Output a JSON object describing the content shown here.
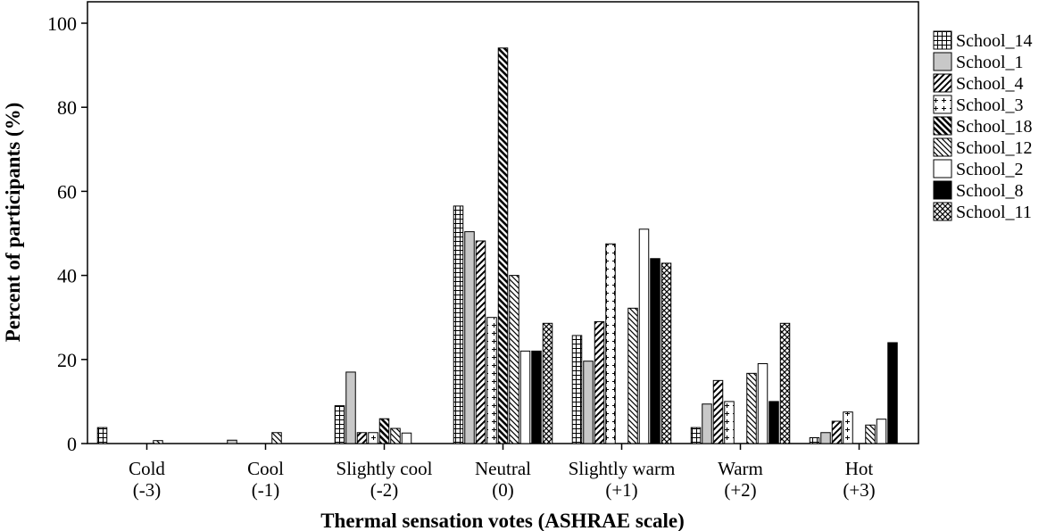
{
  "chart_data": {
    "type": "bar",
    "title": "",
    "xlabel": "Thermal sensation votes (ASHRAE scale)",
    "ylabel": "Percent of participants (%)",
    "ylim": [
      0,
      100
    ],
    "yticks": [
      0,
      20,
      40,
      60,
      80,
      100
    ],
    "grid": false,
    "legend_position": "right",
    "categories": [
      {
        "line1": "Cold",
        "line2": "(-3)"
      },
      {
        "line1": "Cool",
        "line2": "(-1)"
      },
      {
        "line1": "Slightly cool",
        "line2": "(-2)"
      },
      {
        "line1": "Neutral",
        "line2": "(0)"
      },
      {
        "line1": "Slightly warm",
        "line2": "(+1)"
      },
      {
        "line1": "Warm",
        "line2": "(+2)"
      },
      {
        "line1": "Hot",
        "line2": "(+3)"
      }
    ],
    "series": [
      {
        "name": "School_14",
        "pattern": "grid",
        "values": [
          3.8,
          0,
          9,
          56.5,
          25.7,
          3.8,
          1.4
        ]
      },
      {
        "name": "School_1",
        "pattern": "gray",
        "values": [
          0,
          0.8,
          17,
          50.4,
          19.6,
          9.4,
          2.6
        ]
      },
      {
        "name": "School_4",
        "pattern": "diag",
        "values": [
          0,
          0,
          2.6,
          48.2,
          29,
          15,
          5.3
        ]
      },
      {
        "name": "School_3",
        "pattern": "plus",
        "values": [
          0,
          0,
          2.6,
          30,
          47.5,
          10,
          7.5
        ]
      },
      {
        "name": "School_18",
        "pattern": "backdiag",
        "values": [
          0,
          0,
          5.9,
          94.1,
          0,
          0,
          0
        ]
      },
      {
        "name": "School_12",
        "pattern": "backdiag2",
        "values": [
          0.7,
          2.6,
          3.6,
          40,
          32.2,
          16.7,
          4.4
        ]
      },
      {
        "name": "School_2",
        "pattern": "white",
        "values": [
          0,
          0,
          2.5,
          22,
          51,
          19,
          5.8
        ]
      },
      {
        "name": "School_8",
        "pattern": "black",
        "values": [
          0,
          0,
          0,
          22,
          44,
          10,
          24
        ]
      },
      {
        "name": "School_11",
        "pattern": "cross",
        "values": [
          0,
          0,
          0,
          28.6,
          42.9,
          28.6,
          0
        ]
      }
    ]
  }
}
